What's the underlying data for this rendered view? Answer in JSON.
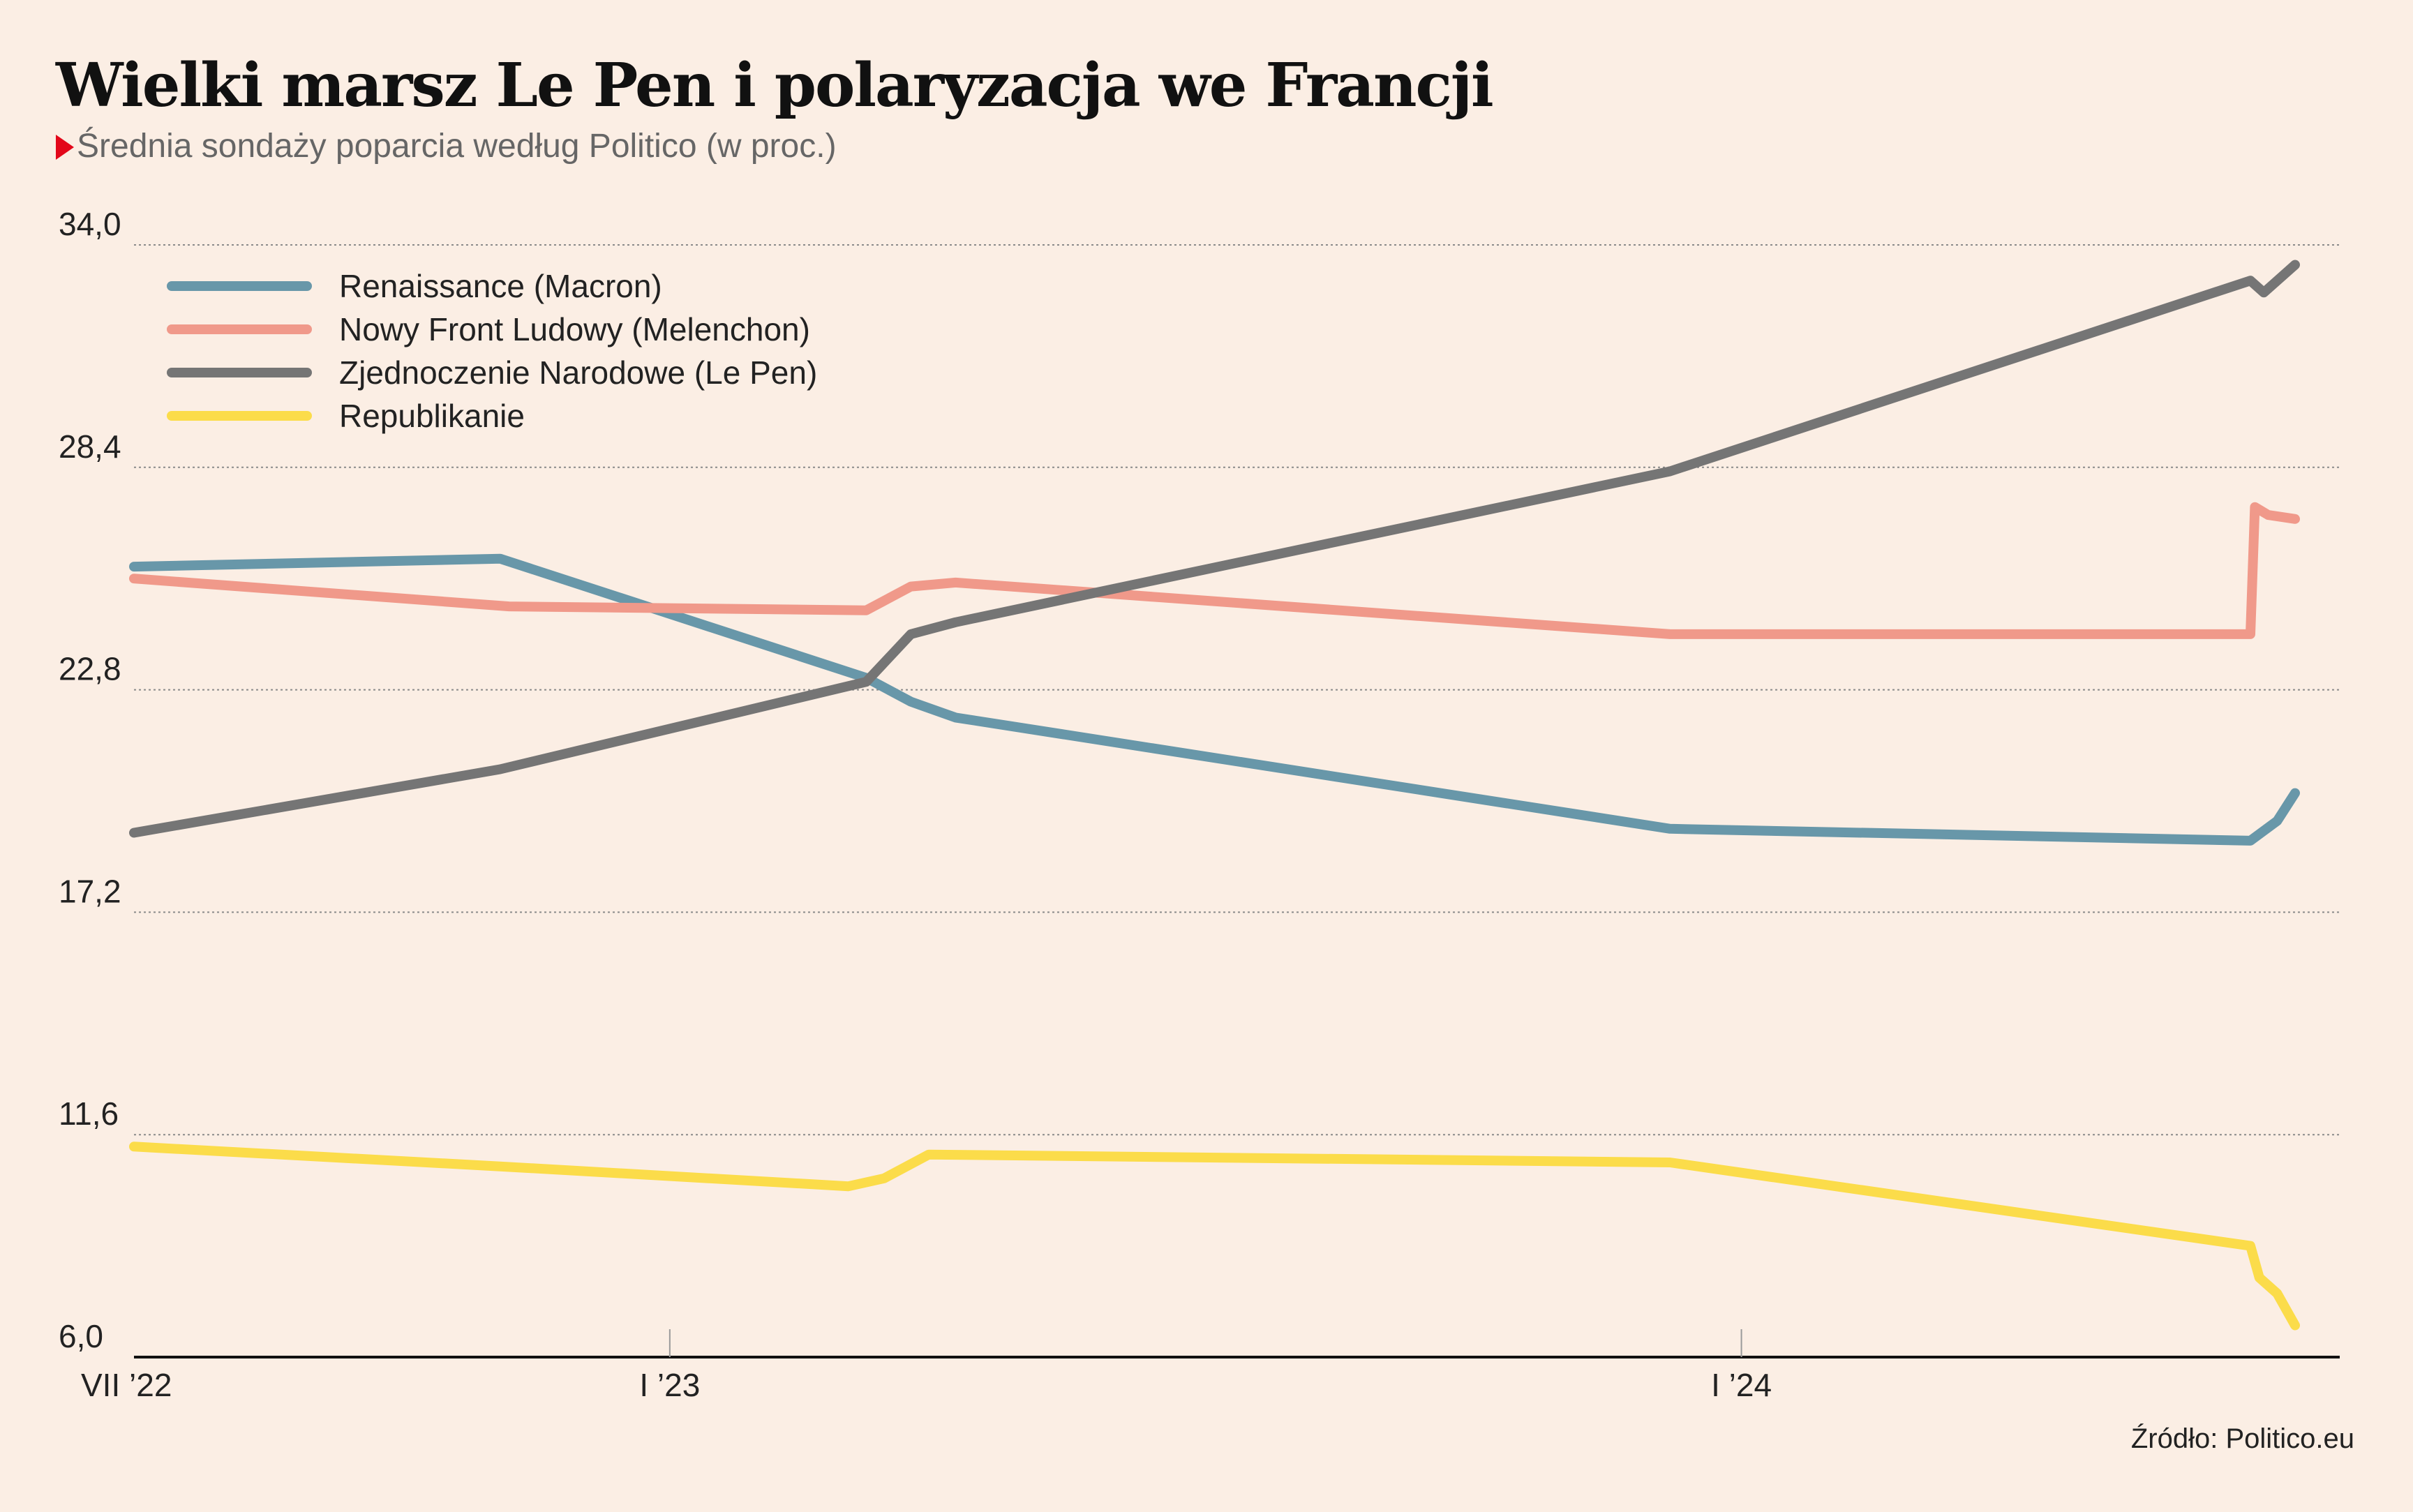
{
  "header": {
    "title": "Wielki marsz Le Pen i polaryzacja we Francji",
    "subtitle": "Średnia sondaży poparcia według Politico (w proc.)"
  },
  "footer": {
    "source": "Źródło: Politico.eu"
  },
  "chart_data": {
    "type": "line",
    "x_axis": {
      "range_months": [
        0,
        24.7
      ],
      "ticks": [
        {
          "label": "VII ’22",
          "month": 0
        },
        {
          "label": "I ’23",
          "month": 6
        },
        {
          "label": "I ’24",
          "month": 18
        }
      ]
    },
    "y_axis": {
      "range": [
        6.0,
        34.0
      ],
      "ticks": [
        "34,0",
        "28,4",
        "22,8",
        "17,2",
        "11,6",
        "6,0"
      ],
      "tick_values": [
        34.0,
        28.4,
        22.8,
        17.2,
        11.6,
        6.0
      ],
      "grid": true
    },
    "legend_position": "top-left",
    "series": [
      {
        "name": "Renaissance (Macron)",
        "color": "#6897a9",
        "points": [
          [
            0,
            25.9
          ],
          [
            4.1,
            26.1
          ],
          [
            8.2,
            23.1
          ],
          [
            8.7,
            22.5
          ],
          [
            9.2,
            22.1
          ],
          [
            17.2,
            19.3
          ],
          [
            23.7,
            19.0
          ],
          [
            24.0,
            19.5
          ],
          [
            24.2,
            20.2
          ]
        ]
      },
      {
        "name": "Nowy Front Ludowy (Melenchon)",
        "color": "#f0998a",
        "points": [
          [
            0,
            25.6
          ],
          [
            4.2,
            24.9
          ],
          [
            8.2,
            24.8
          ],
          [
            8.7,
            25.4
          ],
          [
            9.2,
            25.5
          ],
          [
            17.2,
            24.2
          ],
          [
            23.7,
            24.2
          ],
          [
            23.75,
            27.4
          ],
          [
            23.9,
            27.2
          ],
          [
            24.2,
            27.1
          ]
        ]
      },
      {
        "name": "Zjednoczenie Narodowe (Le Pen)",
        "color": "#757575",
        "points": [
          [
            0,
            19.2
          ],
          [
            4.1,
            20.8
          ],
          [
            8.2,
            23.0
          ],
          [
            8.7,
            24.2
          ],
          [
            9.2,
            24.5
          ],
          [
            17.2,
            28.3
          ],
          [
            23.7,
            33.1
          ],
          [
            23.85,
            32.8
          ],
          [
            24.2,
            33.5
          ]
        ]
      },
      {
        "name": "Republikanie",
        "color": "#fbdc4a",
        "points": [
          [
            0,
            11.3
          ],
          [
            4.1,
            10.8
          ],
          [
            8.0,
            10.3
          ],
          [
            8.4,
            10.5
          ],
          [
            8.9,
            11.1
          ],
          [
            17.2,
            10.9
          ],
          [
            23.7,
            8.8
          ],
          [
            23.8,
            8.0
          ],
          [
            24.0,
            7.6
          ],
          [
            24.2,
            6.8
          ]
        ]
      }
    ]
  }
}
